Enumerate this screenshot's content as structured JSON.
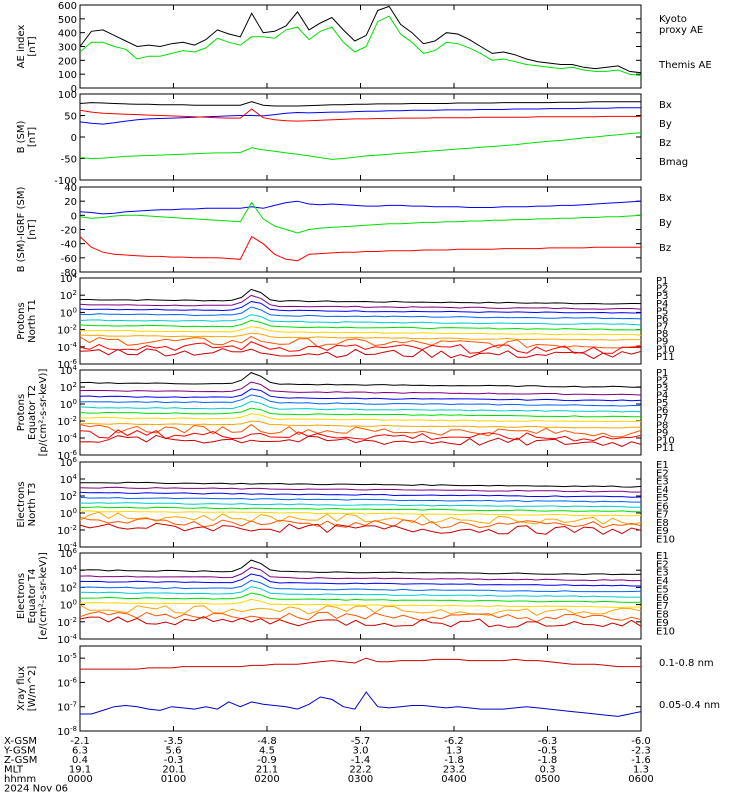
{
  "chart_data": [
    {
      "type": "line",
      "ylabel": "AE index\n[nT]",
      "ylim": [
        0,
        600
      ],
      "yticks": [
        "0",
        "100",
        "200",
        "300",
        "400",
        "500",
        "600"
      ],
      "series": [
        {
          "name": "Kyoto\nproxy AE",
          "color": "#00e000",
          "values": [
            260,
            330,
            330,
            300,
            280,
            210,
            230,
            230,
            250,
            270,
            260,
            290,
            360,
            330,
            310,
            370,
            370,
            360,
            420,
            440,
            350,
            410,
            440,
            330,
            260,
            300,
            480,
            520,
            390,
            330,
            250,
            270,
            330,
            320,
            290,
            250,
            200,
            210,
            190,
            170,
            160,
            150,
            140,
            150,
            130,
            120,
            120,
            130,
            100,
            90
          ]
        },
        {
          "name": "Themis AE",
          "color": "#000000",
          "values": [
            300,
            410,
            420,
            380,
            340,
            300,
            310,
            300,
            320,
            330,
            310,
            350,
            420,
            390,
            370,
            540,
            400,
            410,
            450,
            550,
            420,
            470,
            510,
            420,
            340,
            380,
            560,
            590,
            460,
            400,
            320,
            340,
            400,
            390,
            350,
            300,
            250,
            260,
            240,
            210,
            190,
            180,
            170,
            170,
            150,
            140,
            150,
            160,
            120,
            110
          ]
        }
      ]
    },
    {
      "type": "line",
      "ylabel": "B (SM)\n[nT]",
      "ylim": [
        -100,
        100
      ],
      "yticks": [
        "-100",
        "-50",
        "0",
        "50",
        "100"
      ],
      "series": [
        {
          "name": "Bx",
          "color": "#0000ff",
          "values": [
            35,
            32,
            30,
            33,
            37,
            40,
            42,
            43,
            44,
            45,
            46,
            47,
            48,
            49,
            50,
            50,
            49,
            52,
            55,
            57,
            56,
            57,
            58,
            58,
            59,
            60,
            60,
            61,
            61,
            62,
            62,
            62,
            63,
            63,
            63,
            64,
            64,
            64,
            65,
            65,
            65,
            66,
            66,
            66,
            67,
            67,
            67,
            68,
            68,
            68
          ]
        },
        {
          "name": "By",
          "color": "#00e000",
          "values": [
            -48,
            -50,
            -49,
            -47,
            -45,
            -44,
            -43,
            -42,
            -41,
            -40,
            -39,
            -38,
            -37,
            -37,
            -36,
            -25,
            -30,
            -33,
            -37,
            -40,
            -44,
            -48,
            -52,
            -50,
            -47,
            -44,
            -42,
            -40,
            -38,
            -36,
            -34,
            -32,
            -30,
            -28,
            -26,
            -24,
            -22,
            -20,
            -18,
            -15,
            -12,
            -10,
            -8,
            -5,
            -2,
            0,
            3,
            5,
            8,
            10
          ]
        },
        {
          "name": "Bz",
          "color": "#ff0000",
          "values": [
            62,
            58,
            55,
            54,
            53,
            52,
            51,
            50,
            49,
            48,
            47,
            46,
            45,
            44,
            44,
            65,
            45,
            40,
            38,
            37,
            38,
            39,
            40,
            41,
            42,
            42,
            43,
            43,
            44,
            44,
            44,
            45,
            45,
            45,
            45,
            46,
            46,
            46,
            46,
            46,
            47,
            47,
            47,
            47,
            47,
            47,
            48,
            48,
            48,
            48
          ]
        },
        {
          "name": "Bmag",
          "color": "#000000",
          "values": [
            78,
            80,
            79,
            78,
            77,
            76,
            76,
            75,
            75,
            75,
            74,
            74,
            74,
            74,
            74,
            82,
            74,
            72,
            72,
            72,
            73,
            74,
            75,
            75,
            76,
            76,
            77,
            77,
            77,
            78,
            78,
            78,
            78,
            79,
            79,
            79,
            79,
            80,
            80,
            80,
            80,
            80,
            81,
            81,
            81,
            82,
            82,
            82,
            82,
            82
          ]
        }
      ]
    },
    {
      "type": "line",
      "ylabel": "B (SM)-IGRF (SM)\n[nT]",
      "ylim": [
        -80,
        40
      ],
      "yticks": [
        "-80",
        "-60",
        "-40",
        "-20",
        "0",
        "20",
        "40"
      ],
      "series": [
        {
          "name": "Bx",
          "color": "#0000ff",
          "values": [
            5,
            4,
            2,
            3,
            5,
            6,
            7,
            8,
            8,
            9,
            9,
            10,
            10,
            10,
            10,
            12,
            10,
            14,
            18,
            20,
            16,
            15,
            16,
            15,
            14,
            13,
            13,
            14,
            14,
            13,
            13,
            12,
            12,
            12,
            11,
            11,
            11,
            12,
            12,
            12,
            13,
            13,
            14,
            14,
            15,
            16,
            17,
            18,
            19,
            20
          ]
        },
        {
          "name": "By",
          "color": "#00e000",
          "values": [
            -2,
            -4,
            -3,
            -1,
            0,
            0,
            -1,
            -2,
            -3,
            -4,
            -5,
            -6,
            -7,
            -8,
            -9,
            18,
            -5,
            -15,
            -20,
            -25,
            -20,
            -18,
            -17,
            -16,
            -15,
            -14,
            -13,
            -12,
            -12,
            -11,
            -10,
            -10,
            -9,
            -9,
            -8,
            -8,
            -7,
            -7,
            -6,
            -6,
            -5,
            -5,
            -4,
            -4,
            -3,
            -3,
            -2,
            -2,
            -1,
            0
          ]
        },
        {
          "name": "Bz",
          "color": "#ff0000",
          "values": [
            -30,
            -45,
            -52,
            -55,
            -56,
            -57,
            -58,
            -58,
            -59,
            -59,
            -60,
            -60,
            -60,
            -61,
            -62,
            -30,
            -40,
            -55,
            -62,
            -64,
            -55,
            -54,
            -53,
            -52,
            -52,
            -51,
            -51,
            -50,
            -50,
            -50,
            -49,
            -49,
            -49,
            -48,
            -48,
            -48,
            -48,
            -47,
            -47,
            -47,
            -47,
            -46,
            -46,
            -46,
            -46,
            -45,
            -45,
            -45,
            -45,
            -45
          ]
        }
      ]
    },
    {
      "type": "line",
      "ylabel": "Protons\nNorth T1",
      "ylog": true,
      "ylim": [
        -6,
        4
      ],
      "yticks": [
        "10^4",
        "10^2",
        "10^0",
        "10^-2",
        "10^-4",
        "10^-6"
      ],
      "channels": [
        {
          "name": "P1",
          "color": "#000000",
          "level": 1.5
        },
        {
          "name": "P2",
          "color": "#800080",
          "level": 0.9
        },
        {
          "name": "P3",
          "color": "#0000ff",
          "level": 0.4
        },
        {
          "name": "P4",
          "color": "#0066ff",
          "level": -0.2
        },
        {
          "name": "P5",
          "color": "#00cccc",
          "level": -0.9
        },
        {
          "name": "P6",
          "color": "#00e000",
          "level": -1.5
        },
        {
          "name": "P7",
          "color": "#ffd700",
          "level": -2.1
        },
        {
          "name": "P8",
          "color": "#ffa500",
          "level": -2.7
        },
        {
          "name": "P9",
          "color": "#ff5500",
          "level": -3.3
        },
        {
          "name": "P10",
          "color": "#ff0000",
          "level": -3.9
        },
        {
          "name": "P11",
          "color": "#cc0000",
          "level": -4.5
        }
      ],
      "spike_at": 0.31
    },
    {
      "type": "line",
      "ylabel": "Protons\nEquator T2\n[p/(cm²-s-sr-keV)]",
      "ylog": true,
      "ylim": [
        -6,
        4
      ],
      "yticks": [
        "10^4",
        "10^2",
        "10^0",
        "10^-2",
        "10^-4",
        "10^-6"
      ],
      "channels": [
        {
          "name": "P1",
          "color": "#000000",
          "level": 2.5
        },
        {
          "name": "P2",
          "color": "#800080",
          "level": 1.6
        },
        {
          "name": "P3",
          "color": "#0000ff",
          "level": 0.9
        },
        {
          "name": "P4",
          "color": "#0066ff",
          "level": 0.3
        },
        {
          "name": "P5",
          "color": "#00cccc",
          "level": -0.4
        },
        {
          "name": "P6",
          "color": "#00e000",
          "level": -1.0
        },
        {
          "name": "P7",
          "color": "#ffd700",
          "level": -1.6
        },
        {
          "name": "P8",
          "color": "#ffa500",
          "level": -2.3
        },
        {
          "name": "P9",
          "color": "#ff5500",
          "level": -2.9
        },
        {
          "name": "P10",
          "color": "#ff0000",
          "level": -3.5
        },
        {
          "name": "P11",
          "color": "#cc0000",
          "level": -4.1
        }
      ],
      "spike_at": 0.31
    },
    {
      "type": "line",
      "ylabel": "Electrons\nNorth T3",
      "ylog": true,
      "ylim": [
        -4,
        6
      ],
      "yticks": [
        "10^6",
        "10^4",
        "10^2",
        "10^0",
        "10^-2",
        "10^-4"
      ],
      "channels": [
        {
          "name": "E1",
          "color": "#000000",
          "level": 3.6
        },
        {
          "name": "E2",
          "color": "#800080",
          "level": 3.0
        },
        {
          "name": "E3",
          "color": "#0000ff",
          "level": 2.4
        },
        {
          "name": "E4",
          "color": "#0066ff",
          "level": 1.8
        },
        {
          "name": "E5",
          "color": "#00cccc",
          "level": 1.2
        },
        {
          "name": "E6",
          "color": "#00e000",
          "level": 0.7
        },
        {
          "name": "E7",
          "color": "#ffd700",
          "level": 0.2
        },
        {
          "name": "E8",
          "color": "#ffa500",
          "level": -0.4
        },
        {
          "name": "E9",
          "color": "#ff5500",
          "level": -1.0
        },
        {
          "name": "E10",
          "color": "#cc0000",
          "level": -1.6
        }
      ],
      "spike_at": -1
    },
    {
      "type": "line",
      "ylabel": "Electrons\nEquator T4\n[e/(cm²-s-sr-keV)]",
      "ylog": true,
      "ylim": [
        -4,
        6
      ],
      "yticks": [
        "10^6",
        "10^4",
        "10^2",
        "10^0",
        "10^-2",
        "10^-4"
      ],
      "channels": [
        {
          "name": "E1",
          "color": "#000000",
          "level": 4.0
        },
        {
          "name": "E2",
          "color": "#800080",
          "level": 3.3
        },
        {
          "name": "E3",
          "color": "#0000ff",
          "level": 2.7
        },
        {
          "name": "E4",
          "color": "#0066ff",
          "level": 2.0
        },
        {
          "name": "E5",
          "color": "#00cccc",
          "level": 1.4
        },
        {
          "name": "E6",
          "color": "#00e000",
          "level": 0.8
        },
        {
          "name": "E7",
          "color": "#ffd700",
          "level": 0.2
        },
        {
          "name": "E8",
          "color": "#ffa500",
          "level": -0.4
        },
        {
          "name": "E9",
          "color": "#ff5500",
          "level": -1.1
        },
        {
          "name": "E10",
          "color": "#cc0000",
          "level": -1.8
        }
      ],
      "spike_at": 0.31
    },
    {
      "type": "line",
      "ylabel": "Xray flux\n[W/m^2]",
      "ylog": true,
      "ylim": [
        -8,
        -4.5
      ],
      "yticks": [
        "10^-5",
        "10^-6",
        "10^-7",
        "10^-8"
      ],
      "series": [
        {
          "name": "0.1-0.8 nm",
          "color": "#cc0000",
          "values": [
            -5.45,
            -5.45,
            -5.45,
            -5.45,
            -5.45,
            -5.45,
            -5.4,
            -5.4,
            -5.4,
            -5.35,
            -5.35,
            -5.35,
            -5.35,
            -5.35,
            -5.35,
            -5.3,
            -5.3,
            -5.25,
            -5.25,
            -5.25,
            -5.2,
            -5.15,
            -5.1,
            -5.15,
            -5.2,
            -5.0,
            -5.15,
            -5.15,
            -5.1,
            -5.1,
            -5.1,
            -5.05,
            -5.05,
            -5.05,
            -5.1,
            -5.1,
            -5.1,
            -5.1,
            -5.05,
            -5.1,
            -5.1,
            -5.15,
            -5.2,
            -5.25,
            -5.25,
            -5.25,
            -5.3,
            -5.35,
            -5.35,
            -5.35
          ]
        },
        {
          "name": "0.05-0.4 nm",
          "color": "#0000cc",
          "values": [
            -7.3,
            -7.3,
            -7.15,
            -7.0,
            -6.95,
            -7.0,
            -7.1,
            -7.15,
            -7.0,
            -7.05,
            -7.1,
            -7.0,
            -7.1,
            -6.8,
            -7.0,
            -6.8,
            -6.9,
            -6.95,
            -7.0,
            -7.1,
            -6.9,
            -6.6,
            -6.7,
            -7.0,
            -7.1,
            -6.4,
            -7.0,
            -7.05,
            -7.0,
            -6.95,
            -6.95,
            -7.0,
            -7.05,
            -7.0,
            -7.05,
            -7.1,
            -7.1,
            -7.1,
            -7.05,
            -7.0,
            -7.05,
            -7.1,
            -7.15,
            -7.2,
            -7.25,
            -7.3,
            -7.35,
            -7.4,
            -7.3,
            -7.2
          ]
        }
      ]
    }
  ],
  "footer": {
    "rows": [
      {
        "label": "X-GSM",
        "values": [
          "-2.1",
          "-3.5",
          "-4.8",
          "-5.7",
          "-6.2",
          "-6.3",
          "-6.0"
        ]
      },
      {
        "label": "Y-GSM",
        "values": [
          "6.3",
          "5.6",
          "4.5",
          "3.0",
          "1.3",
          "-0.5",
          "-2.3"
        ]
      },
      {
        "label": "Z-GSM",
        "values": [
          "0.4",
          "-0.3",
          "-0.9",
          "-1.4",
          "-1.8",
          "-1.8",
          "-1.6"
        ]
      },
      {
        "label": "MLT",
        "values": [
          "19.1",
          "20.1",
          "21.1",
          "22.2",
          "23.2",
          "0.3",
          "1.3"
        ]
      },
      {
        "label": "hhmm",
        "values": [
          "0000",
          "0100",
          "0200",
          "0300",
          "0400",
          "0500",
          "0600"
        ]
      }
    ],
    "date": "2024 Nov 06"
  }
}
